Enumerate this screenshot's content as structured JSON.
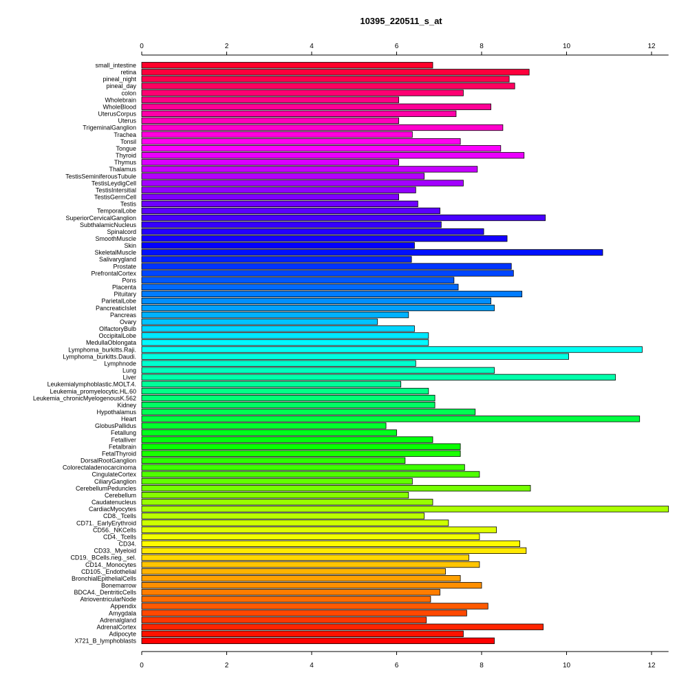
{
  "chart_data": {
    "type": "bar",
    "orientation": "horizontal",
    "title": "10395_220511_s_at",
    "xlabel": "",
    "ylabel": "",
    "xlim": [
      0,
      12.4
    ],
    "xticks": [
      "0",
      "2",
      "4",
      "6",
      "8",
      "10",
      "12"
    ],
    "grid": false,
    "legend": "none",
    "categories": [
      "small_intestine",
      "retina",
      "pineal_night",
      "pineal_day",
      "colon",
      "Wholebrain",
      "WholeBlood",
      "UterusCorpus",
      "Uterus",
      "TrigeminalGanglion",
      "Trachea",
      "Tonsil",
      "Tongue",
      "Thyroid",
      "Thymus",
      "Thalamus",
      "TestisSeminiferousTubule",
      "TestisLeydigCell",
      "TestisIntersitial",
      "TestisGermCell",
      "Testis",
      "TemporalLobe",
      "SuperiorCervicalGanglion",
      "SubthalamicNucleus",
      "Spinalcord",
      "SmoothMuscle",
      "Skin",
      "SkeletalMuscle",
      "Salivarygland",
      "Prostate",
      "PrefrontalCortex",
      "Pons",
      "Placenta",
      "Pituitary",
      "ParietalLobe",
      "PancreaticIslet",
      "Pancreas",
      "Ovary",
      "OlfactoryBulb",
      "OccipitalLobe",
      "MedullaOblongata",
      "Lymphoma_burkitts.Raji.",
      "Lymphoma_burkitts.Daudi.",
      "Lymphnode",
      "Lung",
      "Liver",
      "Leukemialymphoblastic.MOLT.4.",
      "Leukemia_promyelocytic.HL.60",
      "Leukemia_chronicMyelogenousK.562",
      "Kidney",
      "Hypothalamus",
      "Heart",
      "GlobusPallidus",
      "Fetallung",
      "Fetalliver",
      "Fetalbrain",
      "FetalThyroid",
      "DorsalRootGanglion",
      "Colorectaladenocarcinoma",
      "CingulateCortex",
      "CiliaryGanglion",
      "CerebellumPeduncles",
      "Cerebellum",
      "Caudatenucleus",
      "CardiacMyocytes",
      "CD8._Tcells",
      "CD71._EarlyErythroid",
      "CD56._NKCells",
      "CD4._Tcells",
      "CD34.",
      "CD33._Myeloid",
      "CD19._BCells.neg._sel.",
      "CD14._Monocytes",
      "CD105._Endothelial",
      "BronchialEpithelialCells",
      "Bonemarrow",
      "BDCA4._DentriticCells",
      "AtrioventricularNode",
      "Appendix",
      "Amygdala",
      "Adrenalgland",
      "AdrenalCortex",
      "Adipocyte",
      "X721_B_lymphoblasts"
    ],
    "values": [
      6.85,
      9.12,
      8.65,
      8.78,
      7.57,
      6.05,
      8.22,
      7.4,
      6.05,
      8.5,
      6.37,
      7.5,
      8.45,
      9.0,
      6.05,
      7.9,
      6.65,
      7.57,
      6.45,
      6.05,
      6.5,
      7.02,
      9.5,
      7.05,
      8.05,
      8.6,
      6.42,
      10.85,
      6.35,
      8.7,
      8.75,
      7.35,
      7.45,
      8.95,
      8.22,
      8.3,
      6.28,
      5.55,
      6.42,
      6.75,
      6.75,
      11.78,
      10.05,
      6.45,
      8.3,
      11.15,
      6.1,
      6.75,
      6.9,
      6.9,
      7.85,
      11.72,
      5.75,
      6.0,
      6.85,
      7.5,
      7.5,
      6.2,
      7.6,
      7.95,
      6.37,
      9.15,
      6.28,
      6.85,
      12.4,
      6.65,
      7.22,
      8.35,
      7.95,
      8.9,
      9.05,
      7.7,
      7.95,
      7.15,
      7.5,
      8.0,
      7.02,
      6.8,
      8.15,
      7.65,
      6.7,
      9.45,
      7.57,
      8.3
    ]
  }
}
